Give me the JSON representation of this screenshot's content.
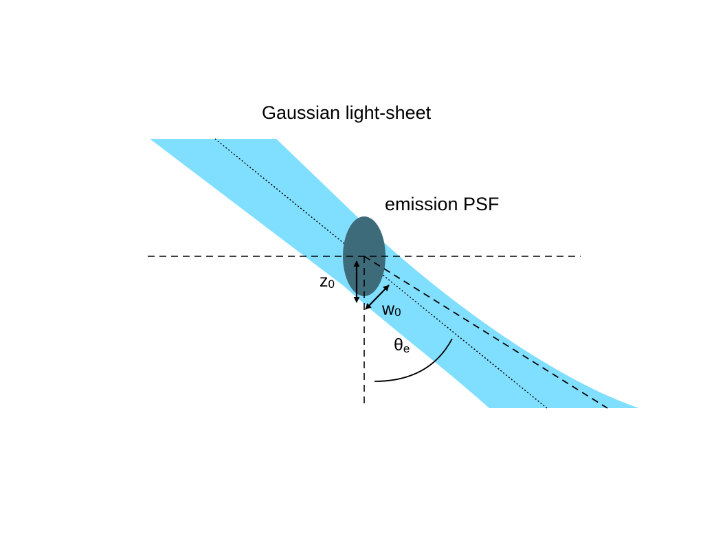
{
  "diagram": {
    "title": "Gaussian light-sheet",
    "psf_label": "emission PSF",
    "z0": {
      "symbol": "z",
      "subscript": "0"
    },
    "w0": {
      "symbol": "w",
      "subscript": "0"
    },
    "theta_e": {
      "symbol": "θ",
      "subscript": "e"
    }
  },
  "colors": {
    "sheet": "#80dfff",
    "psf": "#3d6b7a",
    "line": "#000000",
    "background": "#ffffff"
  }
}
